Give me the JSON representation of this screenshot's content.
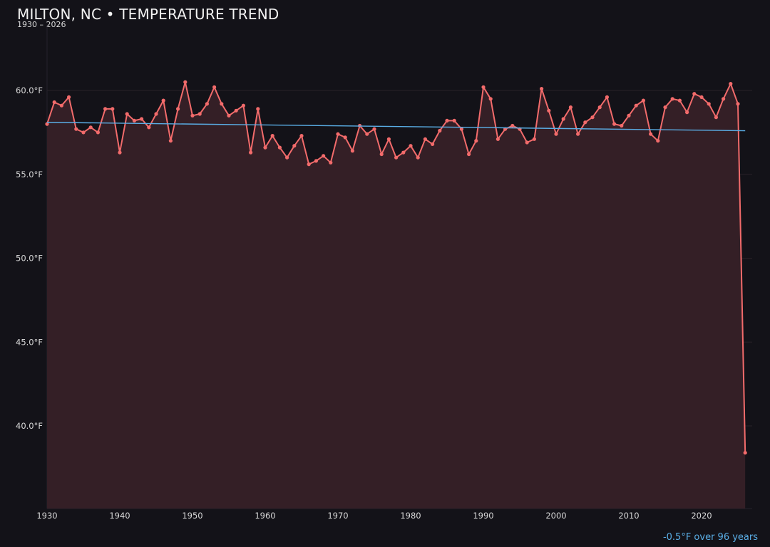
{
  "header": {
    "title": "MILTON, NC • TEMPERATURE TREND",
    "subtitle": "1930 – 2026"
  },
  "footer": {
    "trend_note": "-0.5°F over 96 years"
  },
  "colors": {
    "background": "#131218",
    "line": "#f26b6b",
    "fill": "#341f26",
    "trend": "#5aaee6",
    "grid": "#2a2128",
    "tick_text": "#d8d8d8"
  },
  "chart_data": {
    "type": "line",
    "title": "MILTON, NC • TEMPERATURE TREND",
    "subtitle": "1930 – 2026",
    "xlabel": "",
    "ylabel": "",
    "xlim": [
      1930,
      2027
    ],
    "ylim": [
      35.1,
      63.9
    ],
    "x_ticks": [
      1930,
      1940,
      1950,
      1960,
      1970,
      1980,
      1990,
      2000,
      2010,
      2020
    ],
    "y_ticks": [
      40.0,
      45.0,
      50.0,
      55.0,
      60.0
    ],
    "y_tick_labels": [
      "40.0°F",
      "45.0°F",
      "50.0°F",
      "55.0°F",
      "60.0°F"
    ],
    "grid": "horizontal",
    "legend": null,
    "series": [
      {
        "name": "Annual mean temperature (°F)",
        "style": "line+markers with area fill",
        "x": [
          1930,
          1931,
          1932,
          1933,
          1934,
          1935,
          1936,
          1937,
          1938,
          1939,
          1940,
          1941,
          1942,
          1943,
          1944,
          1945,
          1946,
          1947,
          1948,
          1949,
          1950,
          1951,
          1952,
          1953,
          1954,
          1955,
          1956,
          1957,
          1958,
          1959,
          1960,
          1961,
          1962,
          1963,
          1964,
          1965,
          1966,
          1967,
          1968,
          1969,
          1970,
          1971,
          1972,
          1973,
          1974,
          1975,
          1976,
          1977,
          1978,
          1979,
          1980,
          1981,
          1982,
          1983,
          1984,
          1985,
          1986,
          1987,
          1988,
          1989,
          1990,
          1991,
          1992,
          1993,
          1994,
          1995,
          1996,
          1997,
          1998,
          1999,
          2000,
          2001,
          2002,
          2003,
          2004,
          2005,
          2006,
          2007,
          2008,
          2009,
          2010,
          2011,
          2012,
          2013,
          2014,
          2015,
          2016,
          2017,
          2018,
          2019,
          2020,
          2021,
          2022,
          2023,
          2024,
          2025,
          2026
        ],
        "values": [
          58.0,
          59.3,
          59.1,
          59.6,
          57.7,
          57.5,
          57.8,
          57.5,
          58.9,
          58.9,
          56.3,
          58.6,
          58.2,
          58.3,
          57.8,
          58.6,
          59.4,
          57.0,
          58.9,
          60.5,
          58.5,
          58.6,
          59.2,
          60.2,
          59.2,
          58.5,
          58.8,
          59.1,
          56.3,
          58.9,
          56.6,
          57.3,
          56.6,
          56.0,
          56.7,
          57.3,
          55.6,
          55.8,
          56.1,
          55.7,
          57.4,
          57.2,
          56.4,
          57.9,
          57.4,
          57.7,
          56.2,
          57.1,
          56.0,
          56.3,
          56.7,
          56.0,
          57.1,
          56.8,
          57.6,
          58.2,
          58.2,
          57.7,
          56.2,
          57.0,
          60.2,
          59.5,
          57.1,
          57.7,
          57.9,
          57.7,
          56.9,
          57.1,
          60.1,
          58.8,
          57.4,
          58.3,
          59.0,
          57.4,
          58.1,
          58.4,
          59.0,
          59.6,
          58.0,
          57.9,
          58.5,
          59.1,
          59.4,
          57.4,
          57.0,
          59.0,
          59.5,
          59.4,
          58.7,
          59.8,
          59.6,
          59.2,
          58.4,
          59.5,
          60.4,
          59.2,
          38.4
        ]
      },
      {
        "name": "Linear trend",
        "style": "line",
        "x": [
          1930,
          2026
        ],
        "values": [
          58.1,
          57.6
        ]
      }
    ],
    "annotations": [
      "-0.5°F over 96 years"
    ]
  }
}
